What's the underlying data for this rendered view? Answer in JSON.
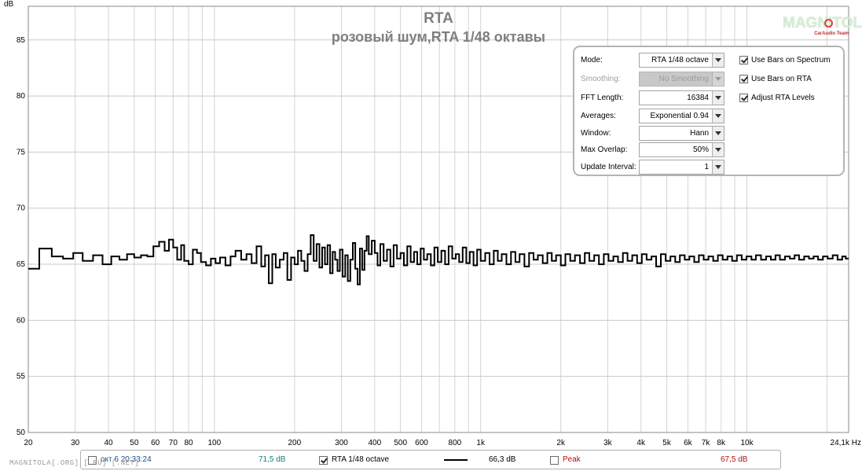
{
  "chart_data": {
    "type": "line",
    "title": "RTA",
    "subtitle": "розовый шум,RTA 1/48 октавы",
    "ylabel": "dB",
    "xscale": "log",
    "xlim": [
      20,
      24100
    ],
    "ylim": [
      50,
      88
    ],
    "grid": true,
    "y_ticks": [
      "50",
      "55",
      "60",
      "65",
      "70",
      "75",
      "80",
      "85"
    ],
    "x_tick_labels": [
      {
        "value": 20,
        "label": "20"
      },
      {
        "value": 30,
        "label": "30"
      },
      {
        "value": 40,
        "label": "40"
      },
      {
        "value": 50,
        "label": "50"
      },
      {
        "value": 60,
        "label": "60"
      },
      {
        "value": 70,
        "label": "70"
      },
      {
        "value": 80,
        "label": "80"
      },
      {
        "value": 100,
        "label": "100"
      },
      {
        "value": 200,
        "label": "200"
      },
      {
        "value": 300,
        "label": "300"
      },
      {
        "value": 400,
        "label": "400"
      },
      {
        "value": 500,
        "label": "500"
      },
      {
        "value": 600,
        "label": "600"
      },
      {
        "value": 800,
        "label": "800"
      },
      {
        "value": 1000,
        "label": "1k"
      },
      {
        "value": 2000,
        "label": "2k"
      },
      {
        "value": 3000,
        "label": "3k"
      },
      {
        "value": 4000,
        "label": "4k"
      },
      {
        "value": 5000,
        "label": "5k"
      },
      {
        "value": 6000,
        "label": "6k"
      },
      {
        "value": 7000,
        "label": "7k"
      },
      {
        "value": 8000,
        "label": "8k"
      },
      {
        "value": 10000,
        "label": "10k"
      },
      {
        "value": 24100,
        "label": "24,1k Hz"
      }
    ],
    "x_minor_grid": [
      20,
      30,
      40,
      50,
      60,
      70,
      80,
      90,
      100,
      200,
      300,
      400,
      500,
      600,
      700,
      800,
      900,
      1000,
      2000,
      3000,
      4000,
      5000,
      6000,
      7000,
      8000,
      9000,
      10000,
      20000
    ],
    "series": [
      {
        "name": "RTA 1/48 octave",
        "color": "#000000",
        "step": true,
        "points": [
          [
            20,
            64.6
          ],
          [
            22,
            66.4
          ],
          [
            24.5,
            65.7
          ],
          [
            27,
            65.5
          ],
          [
            29.5,
            66.0
          ],
          [
            32,
            65.3
          ],
          [
            35,
            65.8
          ],
          [
            38,
            65.0
          ],
          [
            41,
            65.7
          ],
          [
            44,
            65.4
          ],
          [
            47,
            65.9
          ],
          [
            50,
            65.6
          ],
          [
            53,
            65.8
          ],
          [
            56,
            65.7
          ],
          [
            59,
            66.6
          ],
          [
            62,
            67.0
          ],
          [
            65,
            66.2
          ],
          [
            67.5,
            67.2
          ],
          [
            70,
            66.5
          ],
          [
            72.5,
            65.4
          ],
          [
            75,
            66.7
          ],
          [
            77,
            65.3
          ],
          [
            80,
            65.0
          ],
          [
            83,
            66.3
          ],
          [
            86,
            66.0
          ],
          [
            89,
            65.2
          ],
          [
            93,
            64.9
          ],
          [
            97,
            65.5
          ],
          [
            101,
            65.1
          ],
          [
            105,
            65.6
          ],
          [
            110,
            64.9
          ],
          [
            115,
            65.7
          ],
          [
            120,
            66.2
          ],
          [
            126,
            65.4
          ],
          [
            132,
            65.9
          ],
          [
            138,
            65.1
          ],
          [
            144,
            66.6
          ],
          [
            150,
            64.8
          ],
          [
            155,
            65.8
          ],
          [
            160,
            63.3
          ],
          [
            165,
            65.9
          ],
          [
            170,
            64.7
          ],
          [
            176,
            65.4
          ],
          [
            182,
            66.0
          ],
          [
            188,
            63.6
          ],
          [
            194,
            65.6
          ],
          [
            200,
            65.0
          ],
          [
            206,
            66.2
          ],
          [
            212,
            65.3
          ],
          [
            218,
            64.4
          ],
          [
            224,
            65.9
          ],
          [
            230,
            67.6
          ],
          [
            236,
            65.3
          ],
          [
            242,
            66.8
          ],
          [
            248,
            64.7
          ],
          [
            254,
            66.5
          ],
          [
            260,
            65.0
          ],
          [
            266,
            66.7
          ],
          [
            272,
            64.2
          ],
          [
            278,
            66.1
          ],
          [
            284,
            65.4
          ],
          [
            290,
            64.4
          ],
          [
            296,
            66.3
          ],
          [
            303,
            63.9
          ],
          [
            310,
            65.8
          ],
          [
            317,
            63.5
          ],
          [
            324,
            65.4
          ],
          [
            331,
            66.9
          ],
          [
            338,
            64.6
          ],
          [
            345,
            63.2
          ],
          [
            352,
            66.4
          ],
          [
            359,
            64.5
          ],
          [
            366,
            66.2
          ],
          [
            373,
            67.5
          ],
          [
            380,
            65.9
          ],
          [
            390,
            67.1
          ],
          [
            400,
            66.0
          ],
          [
            410,
            64.9
          ],
          [
            420,
            66.8
          ],
          [
            432,
            65.3
          ],
          [
            445,
            66.3
          ],
          [
            458,
            64.8
          ],
          [
            471,
            66.7
          ],
          [
            485,
            65.5
          ],
          [
            500,
            66.0
          ],
          [
            515,
            64.9
          ],
          [
            530,
            66.6
          ],
          [
            546,
            65.2
          ],
          [
            562,
            66.1
          ],
          [
            578,
            65.0
          ],
          [
            595,
            66.4
          ],
          [
            612,
            65.4
          ],
          [
            630,
            65.9
          ],
          [
            650,
            64.9
          ],
          [
            670,
            66.5
          ],
          [
            690,
            65.2
          ],
          [
            712,
            66.2
          ],
          [
            735,
            65.0
          ],
          [
            758,
            66.6
          ],
          [
            782,
            65.5
          ],
          [
            806,
            65.9
          ],
          [
            830,
            65.2
          ],
          [
            856,
            66.5
          ],
          [
            883,
            65.1
          ],
          [
            910,
            66.1
          ],
          [
            940,
            64.9
          ],
          [
            970,
            66.3
          ],
          [
            1000,
            65.3
          ],
          [
            1040,
            66.0
          ],
          [
            1080,
            65.0
          ],
          [
            1120,
            66.2
          ],
          [
            1160,
            65.3
          ],
          [
            1200,
            65.9
          ],
          [
            1250,
            65.0
          ],
          [
            1300,
            66.1
          ],
          [
            1350,
            65.2
          ],
          [
            1400,
            65.9
          ],
          [
            1460,
            64.8
          ],
          [
            1520,
            66.0
          ],
          [
            1580,
            65.4
          ],
          [
            1640,
            65.8
          ],
          [
            1710,
            65.1
          ],
          [
            1780,
            66.0
          ],
          [
            1850,
            65.3
          ],
          [
            1920,
            65.8
          ],
          [
            2000,
            64.9
          ],
          [
            2080,
            65.9
          ],
          [
            2170,
            65.3
          ],
          [
            2260,
            65.8
          ],
          [
            2360,
            65.1
          ],
          [
            2460,
            66.0
          ],
          [
            2560,
            65.3
          ],
          [
            2670,
            65.8
          ],
          [
            2780,
            65.0
          ],
          [
            2900,
            65.9
          ],
          [
            3020,
            65.3
          ],
          [
            3150,
            65.7
          ],
          [
            3280,
            65.2
          ],
          [
            3420,
            66.0
          ],
          [
            3560,
            65.3
          ],
          [
            3710,
            65.8
          ],
          [
            3870,
            65.1
          ],
          [
            4030,
            65.9
          ],
          [
            4200,
            65.4
          ],
          [
            4380,
            65.7
          ],
          [
            4560,
            64.8
          ],
          [
            4750,
            65.9
          ],
          [
            4950,
            65.3
          ],
          [
            5160,
            65.7
          ],
          [
            5380,
            65.2
          ],
          [
            5600,
            65.8
          ],
          [
            5840,
            65.4
          ],
          [
            6080,
            65.7
          ],
          [
            6340,
            65.2
          ],
          [
            6600,
            65.8
          ],
          [
            6880,
            65.4
          ],
          [
            7170,
            65.7
          ],
          [
            7470,
            65.3
          ],
          [
            7780,
            65.8
          ],
          [
            8110,
            65.4
          ],
          [
            8450,
            65.7
          ],
          [
            8800,
            65.3
          ],
          [
            9170,
            65.8
          ],
          [
            9560,
            65.4
          ],
          [
            9960,
            65.7
          ],
          [
            10400,
            65.4
          ],
          [
            10800,
            65.8
          ],
          [
            11300,
            65.4
          ],
          [
            11800,
            65.7
          ],
          [
            12300,
            65.4
          ],
          [
            12800,
            65.8
          ],
          [
            13300,
            65.4
          ],
          [
            13900,
            65.7
          ],
          [
            14500,
            65.5
          ],
          [
            15100,
            65.8
          ],
          [
            15700,
            65.4
          ],
          [
            16400,
            65.7
          ],
          [
            17100,
            65.5
          ],
          [
            17800,
            65.7
          ],
          [
            18500,
            65.4
          ],
          [
            19300,
            65.7
          ],
          [
            20100,
            65.5
          ],
          [
            21000,
            65.8
          ],
          [
            21900,
            65.4
          ],
          [
            22800,
            65.7
          ],
          [
            23500,
            65.5
          ],
          [
            24100,
            65.5
          ]
        ]
      }
    ]
  },
  "logo": {
    "text": "MAGNITOLA",
    "tagline": "CarAudio Team",
    "accent_color": "#e04040"
  },
  "controls": {
    "mode": {
      "label": "Mode:",
      "value": "RTA 1/48 octave"
    },
    "smoothing": {
      "label": "Smoothing:",
      "value": "No Smoothing"
    },
    "fft_length": {
      "label": "FFT Length:",
      "value": "16384"
    },
    "averages": {
      "label": "Averages:",
      "value": "Exponential 0.94"
    },
    "window": {
      "label": "Window:",
      "value": "Hann"
    },
    "max_overlap": {
      "label": "Max Overlap:",
      "value": "50%"
    },
    "update_interval": {
      "label": "Update Interval:",
      "value": "1"
    },
    "use_bars_spectrum": {
      "label": "Use Bars on Spectrum",
      "checked": true
    },
    "use_bars_rta": {
      "label": "Use Bars on RTA",
      "checked": true
    },
    "adjust_rta_levels": {
      "label": "Adjust RTA Levels",
      "checked": true
    }
  },
  "legend": {
    "item1": {
      "label": "окт 6 20:33:24",
      "value": "71,5 dB",
      "checked": false,
      "color": "#1a4f8a"
    },
    "item2": {
      "label": "RTA 1/48 octave",
      "value": "66,3 dB",
      "checked": true,
      "color": "#000000"
    },
    "item3": {
      "label": "Peak",
      "value": "67,5 dB",
      "checked": false,
      "color": "#b01010"
    }
  },
  "watermark": "MAGNITOLA[.ORG] [.RU] [.NET]"
}
